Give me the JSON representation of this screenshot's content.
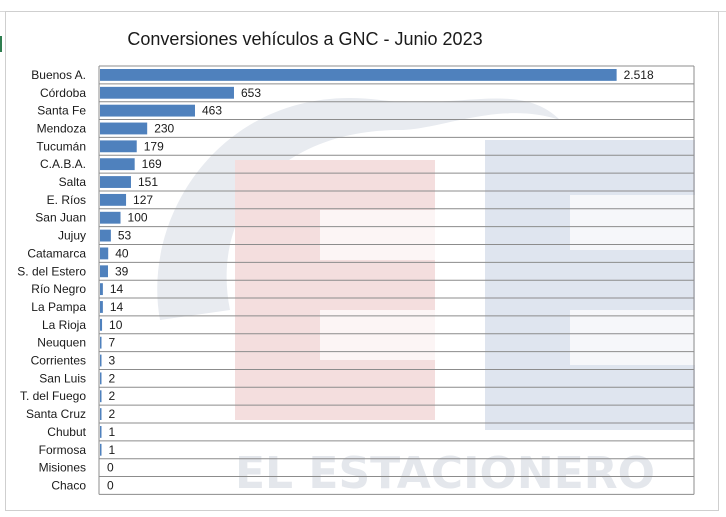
{
  "chart_data": {
    "type": "bar",
    "orientation": "horizontal",
    "title": "Conversiones vehículos a GNC - Junio 2023",
    "xlabel": "",
    "ylabel": "",
    "grid": true,
    "bar_color": "#4f81bd",
    "xlim": [
      0,
      2900
    ],
    "categories": [
      "Buenos A.",
      "Córdoba",
      "Santa Fe",
      "Mendoza",
      "Tucumán",
      "C.A.B.A.",
      "Salta",
      "E. Ríos",
      "San Juan",
      "Jujuy",
      "Catamarca",
      "S. del Estero",
      "Río Negro",
      "La Pampa",
      "La Rioja",
      "Neuquen",
      "Corrientes",
      "San Luis",
      "T. del Fuego",
      "Santa Cruz",
      "Chubut",
      "Formosa",
      "Misiones",
      "Chaco"
    ],
    "values": [
      2518,
      653,
      463,
      230,
      179,
      169,
      151,
      127,
      100,
      53,
      40,
      39,
      14,
      14,
      10,
      7,
      3,
      2,
      2,
      2,
      1,
      1,
      0,
      0
    ],
    "value_labels": [
      "2.518",
      "653",
      "463",
      "230",
      "179",
      "169",
      "151",
      "127",
      "100",
      "53",
      "40",
      "39",
      "14",
      "14",
      "10",
      "7",
      "3",
      "2",
      "2",
      "2",
      "1",
      "1",
      "0",
      "0"
    ]
  },
  "watermark": {
    "text": "EL ESTACIONERO",
    "logo_letters": "EE",
    "colors": {
      "red": "#f3dcdc",
      "blue": "#dfe5ef",
      "gray": "#e8e8e8"
    }
  }
}
